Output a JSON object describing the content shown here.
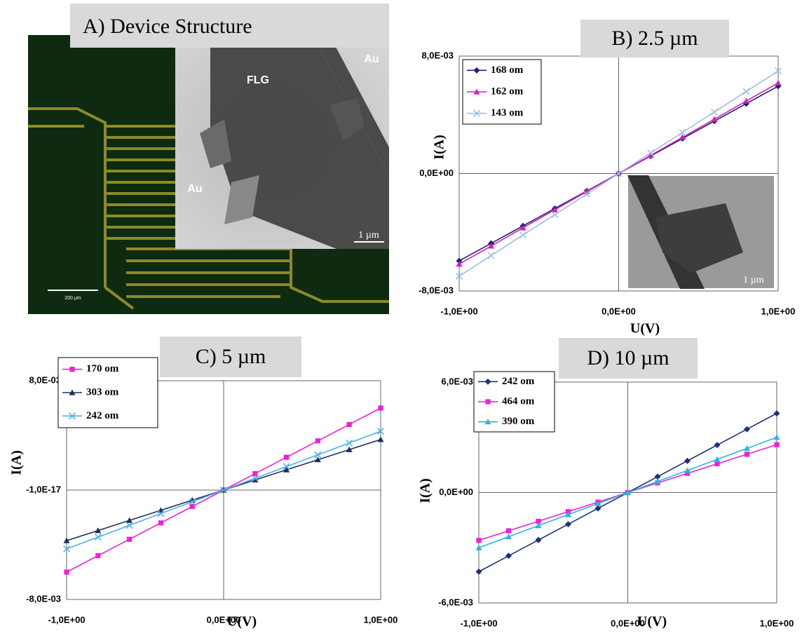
{
  "panel_a": {
    "title": "A) Device Structure",
    "flake_label": "FLG",
    "electrode_labels": [
      "Au",
      "Au"
    ],
    "sem_scale_label": "1 µm",
    "optical_scale_label": "200 µm"
  },
  "chart_data": [
    {
      "type": "line",
      "title": "B) 2.5 µm",
      "x_label": "U(V)",
      "y_label": "I(A)",
      "inset_scale_label": "1 µm",
      "grid": true,
      "x": [
        -1,
        -0.8,
        -0.6,
        -0.4,
        -0.2,
        0,
        0.2,
        0.4,
        0.6,
        0.8,
        1
      ],
      "xlim": [
        -1,
        1
      ],
      "xticks": [
        {
          "value": -1,
          "label": "-1,0E+00"
        },
        {
          "value": 0,
          "label": "0,0E+00"
        },
        {
          "value": 1,
          "label": "1,0E+00"
        }
      ],
      "ylim": [
        -0.008,
        0.008
      ],
      "yticks": [
        {
          "value": -0.008,
          "label": "-8,0E-03"
        },
        {
          "value": 0,
          "label": "0,0E+00"
        },
        {
          "value": 0.008,
          "label": "8,0E-03"
        }
      ],
      "series": [
        {
          "name": "168 om",
          "color": "#1f1f7a",
          "marker": "diamond",
          "values": [
            -0.00595,
            -0.00476,
            -0.00357,
            -0.00238,
            -0.00119,
            0,
            0.00119,
            0.00238,
            0.00357,
            0.00476,
            0.00595
          ]
        },
        {
          "name": "162 om",
          "color": "#d61fb8",
          "marker": "triangle",
          "values": [
            -0.00617,
            -0.00494,
            -0.0037,
            -0.00247,
            -0.00123,
            0,
            0.00123,
            0.00247,
            0.0037,
            0.00494,
            0.00617
          ]
        },
        {
          "name": "143 om",
          "color": "#9bbfe6",
          "marker": "cross",
          "values": [
            -0.00699,
            -0.00559,
            -0.00419,
            -0.0028,
            -0.0014,
            0,
            0.0014,
            0.0028,
            0.00419,
            0.00559,
            0.00699
          ]
        }
      ]
    },
    {
      "type": "line",
      "title": "C) 5 µm",
      "x_label": "U(V)",
      "y_label": "I(A)",
      "grid": true,
      "x": [
        -1,
        -0.8,
        -0.6,
        -0.4,
        -0.2,
        0,
        0.2,
        0.4,
        0.6,
        0.8,
        1
      ],
      "xlim": [
        -1,
        1
      ],
      "xticks": [
        {
          "value": -1,
          "label": "-1,0E+00"
        },
        {
          "value": 0,
          "label": "0,0E+00"
        },
        {
          "value": 1,
          "label": "1,0E+00"
        }
      ],
      "ylim": [
        -0.008,
        0.008
      ],
      "yticks": [
        {
          "value": -0.008,
          "label": "-8,0E-03"
        },
        {
          "value": -1e-17,
          "label": "-1,0E-17"
        },
        {
          "value": 0.008,
          "label": "8,0E-03"
        }
      ],
      "series": [
        {
          "name": "170 om",
          "color": "#f01fd8",
          "marker": "square",
          "values": [
            -0.006,
            -0.0048,
            -0.0036,
            -0.0024,
            -0.0012,
            0,
            0.0012,
            0.0024,
            0.0036,
            0.0048,
            0.006
          ]
        },
        {
          "name": "303 om",
          "color": "#1f2f5f",
          "marker": "triangle",
          "values": [
            -0.0037,
            -0.00296,
            -0.00222,
            -0.00148,
            -0.00074,
            0,
            0.00074,
            0.00148,
            0.00222,
            0.00296,
            0.0037
          ]
        },
        {
          "name": "242 om",
          "color": "#4fb0e8",
          "marker": "cross",
          "values": [
            -0.0043,
            -0.00344,
            -0.00258,
            -0.00172,
            -0.00086,
            0,
            0.00086,
            0.00172,
            0.00258,
            0.00344,
            0.0043
          ]
        }
      ]
    },
    {
      "type": "line",
      "title": "D) 10 µm",
      "x_label": "U(V)",
      "y_label": "I(A)",
      "grid": true,
      "x": [
        -1,
        -0.8,
        -0.6,
        -0.4,
        -0.2,
        0,
        0.2,
        0.4,
        0.6,
        0.8,
        1
      ],
      "xlim": [
        -1,
        1
      ],
      "xticks": [
        {
          "value": -1,
          "label": "-1,0E+00"
        },
        {
          "value": 0,
          "label": "0,0E+00"
        },
        {
          "value": 1,
          "label": "1,0E+00"
        }
      ],
      "ylim": [
        -0.006,
        0.006
      ],
      "yticks": [
        {
          "value": -0.006,
          "label": "-6,0E-03"
        },
        {
          "value": 0,
          "label": "0,0E+00"
        },
        {
          "value": 0.006,
          "label": "6,0E-03"
        }
      ],
      "series": [
        {
          "name": "242 om",
          "color": "#1f2f7a",
          "marker": "diamond",
          "values": [
            -0.0043,
            -0.00344,
            -0.00258,
            -0.00172,
            -0.00086,
            0,
            0.00086,
            0.00172,
            0.00258,
            0.00344,
            0.0043
          ]
        },
        {
          "name": "464 om",
          "color": "#f01fd8",
          "marker": "square",
          "values": [
            -0.0026,
            -0.00208,
            -0.00156,
            -0.00104,
            -0.00052,
            0,
            0.00052,
            0.00104,
            0.00156,
            0.00208,
            0.0026
          ]
        },
        {
          "name": "390 om",
          "color": "#29b6e0",
          "marker": "triangle",
          "values": [
            -0.003,
            -0.0024,
            -0.0018,
            -0.0012,
            -0.0006,
            0,
            0.0006,
            0.0012,
            0.0018,
            0.0024,
            0.003
          ]
        }
      ]
    }
  ]
}
